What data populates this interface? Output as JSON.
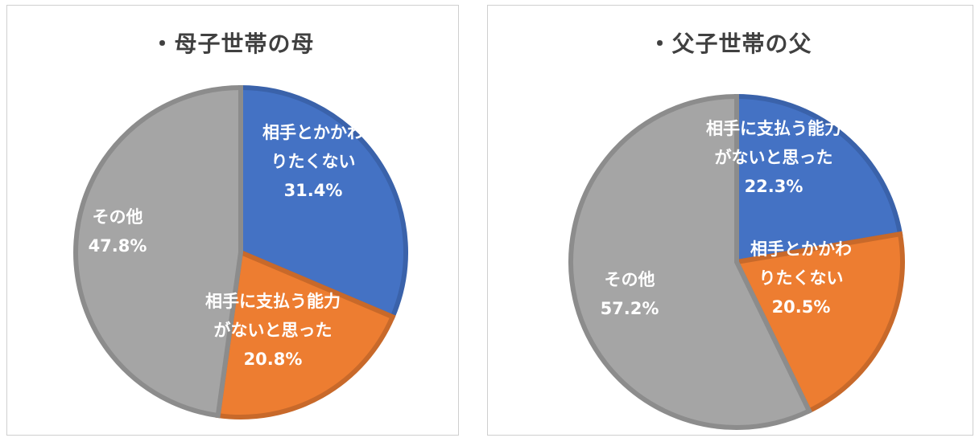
{
  "chart_data": [
    {
      "type": "pie",
      "title": "・母子世帯の母",
      "slices": [
        {
          "label_lines": [
            "相手とかかわ",
            "りたくない"
          ],
          "value_label": "31.4%",
          "value": 31.4,
          "color": "#4472C4",
          "border": "#3A62AA"
        },
        {
          "label_lines": [
            "相手に支払う能力",
            "がないと思った"
          ],
          "value_label": "20.8%",
          "value": 20.8,
          "color": "#ED7D31",
          "border": "#C8692A"
        },
        {
          "label_lines": [
            "その他"
          ],
          "value_label": "47.8%",
          "value": 47.8,
          "color": "#A5A5A5",
          "border": "#8C8C8C"
        }
      ]
    },
    {
      "type": "pie",
      "title": "・父子世帯の父",
      "slices": [
        {
          "label_lines": [
            "相手に支払う能力",
            "がないと思った"
          ],
          "value_label": "22.3%",
          "value": 22.3,
          "color": "#4472C4",
          "border": "#3A62AA"
        },
        {
          "label_lines": [
            "相手とかかわ",
            "りたくない"
          ],
          "value_label": "20.5%",
          "value": 20.5,
          "color": "#ED7D31",
          "border": "#C8692A"
        },
        {
          "label_lines": [
            "その他"
          ],
          "value_label": "57.2%",
          "value": 57.2,
          "color": "#A5A5A5",
          "border": "#8C8C8C"
        }
      ]
    }
  ]
}
